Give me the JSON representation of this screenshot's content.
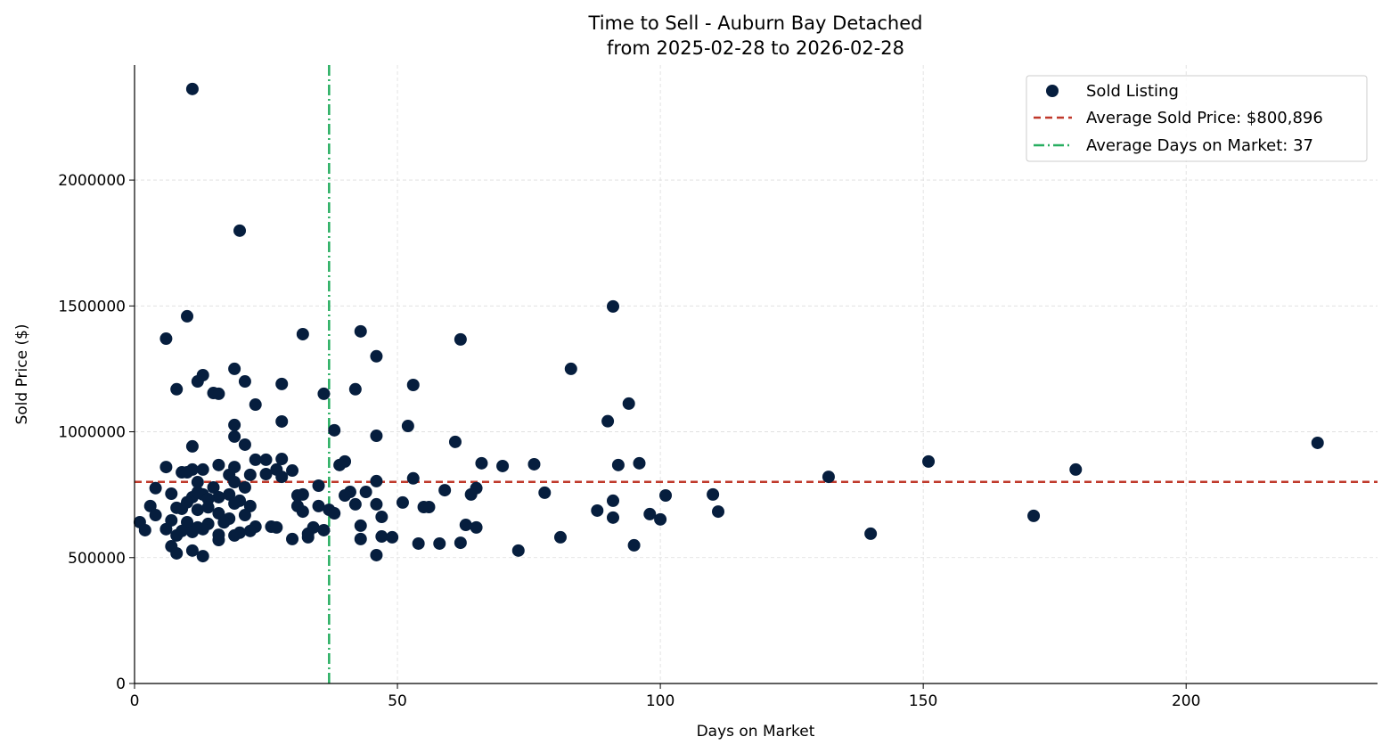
{
  "chart_data": {
    "type": "scatter",
    "title": "Time to Sell - Auburn Bay Detached",
    "subtitle": "from 2025-02-28 to 2026-02-28",
    "xlabel": "Days on Market",
    "ylabel": "Sold Price ($)",
    "xlim": [
      0,
      236.4
    ],
    "ylim": [
      0,
      2457000
    ],
    "xticks": [
      0,
      50,
      100,
      150,
      200
    ],
    "yticks": [
      0,
      500000,
      1000000,
      1500000,
      2000000
    ],
    "grid": true,
    "legend_placement": "top-right",
    "legend": [
      "Sold Listing",
      "Average Sold Price: $800,896",
      "Average Days on Market: 37"
    ],
    "colors": {
      "points": "#061e3e",
      "avg_price": "#c0392b",
      "avg_days": "#27ae60"
    },
    "avg_price": 800896,
    "avg_days": 37,
    "points": [
      [
        11,
        2362000
      ],
      [
        20,
        1799000
      ],
      [
        91,
        1498000
      ],
      [
        10,
        1459000
      ],
      [
        6,
        1370000
      ],
      [
        32,
        1388000
      ],
      [
        43,
        1399000
      ],
      [
        62,
        1367000
      ],
      [
        46,
        1300000
      ],
      [
        83,
        1250000
      ],
      [
        19,
        1250000
      ],
      [
        13,
        1225000
      ],
      [
        12,
        1200000
      ],
      [
        21,
        1200000
      ],
      [
        8,
        1169000
      ],
      [
        28,
        1190000
      ],
      [
        53,
        1186000
      ],
      [
        15,
        1154000
      ],
      [
        16,
        1151000
      ],
      [
        36,
        1151000
      ],
      [
        42,
        1169000
      ],
      [
        23,
        1108000
      ],
      [
        94,
        1112000
      ],
      [
        90,
        1042000
      ],
      [
        28,
        1041000
      ],
      [
        19,
        1027000
      ],
      [
        52,
        1023000
      ],
      [
        38,
        1006000
      ],
      [
        19,
        981000
      ],
      [
        46,
        984000
      ],
      [
        225,
        956000
      ],
      [
        61,
        960000
      ],
      [
        11,
        942000
      ],
      [
        21,
        949000
      ],
      [
        151,
        882000
      ],
      [
        28,
        892000
      ],
      [
        23,
        889000
      ],
      [
        25,
        889000
      ],
      [
        40,
        882000
      ],
      [
        39,
        868000
      ],
      [
        66,
        875000
      ],
      [
        70,
        864000
      ],
      [
        76,
        871000
      ],
      [
        92,
        868000
      ],
      [
        96,
        875000
      ],
      [
        16,
        868000
      ],
      [
        6,
        860000
      ],
      [
        179,
        850000
      ],
      [
        19,
        860000
      ],
      [
        27,
        850000
      ],
      [
        30,
        846000
      ],
      [
        13,
        850000
      ],
      [
        11,
        850000
      ],
      [
        9,
        839000
      ],
      [
        10,
        839000
      ],
      [
        18,
        829000
      ],
      [
        22,
        829000
      ],
      [
        25,
        832000
      ],
      [
        28,
        821000
      ],
      [
        132,
        821000
      ],
      [
        53,
        815000
      ],
      [
        46,
        804000
      ],
      [
        12,
        800000
      ],
      [
        19,
        800000
      ],
      [
        35,
        786000
      ],
      [
        4,
        776000
      ],
      [
        15,
        779000
      ],
      [
        21,
        779000
      ],
      [
        65,
        776000
      ],
      [
        59,
        768000
      ],
      [
        41,
        761000
      ],
      [
        44,
        761000
      ],
      [
        78,
        758000
      ],
      [
        7,
        754000
      ],
      [
        13,
        751000
      ],
      [
        18,
        751000
      ],
      [
        32,
        751000
      ],
      [
        64,
        751000
      ],
      [
        101,
        747000
      ],
      [
        110,
        751000
      ],
      [
        31,
        747000
      ],
      [
        40,
        747000
      ],
      [
        16,
        740000
      ],
      [
        11,
        740000
      ],
      [
        14,
        733000
      ],
      [
        20,
        726000
      ],
      [
        91,
        726000
      ],
      [
        51,
        719000
      ],
      [
        42,
        712000
      ],
      [
        19,
        715000
      ],
      [
        22,
        705000
      ],
      [
        3,
        705000
      ],
      [
        31,
        705000
      ],
      [
        35,
        705000
      ],
      [
        8,
        698000
      ],
      [
        46,
        712000
      ],
      [
        55,
        701000
      ],
      [
        56,
        701000
      ],
      [
        9,
        694000
      ],
      [
        12,
        690000
      ],
      [
        37,
        690000
      ],
      [
        32,
        683000
      ],
      [
        38,
        676000
      ],
      [
        111,
        683000
      ],
      [
        88,
        687000
      ],
      [
        16,
        676000
      ],
      [
        21,
        669000
      ],
      [
        4,
        669000
      ],
      [
        98,
        673000
      ],
      [
        47,
        662000
      ],
      [
        171,
        666000
      ],
      [
        91,
        659000
      ],
      [
        100,
        652000
      ],
      [
        18,
        655000
      ],
      [
        7,
        648000
      ],
      [
        1,
        641000
      ],
      [
        10,
        641000
      ],
      [
        14,
        634000
      ],
      [
        63,
        630000
      ],
      [
        43,
        627000
      ],
      [
        26,
        623000
      ],
      [
        27,
        620000
      ],
      [
        23,
        623000
      ],
      [
        34,
        620000
      ],
      [
        65,
        620000
      ],
      [
        6,
        613000
      ],
      [
        2,
        609000
      ],
      [
        13,
        613000
      ],
      [
        9,
        606000
      ],
      [
        22,
        606000
      ],
      [
        36,
        609000
      ],
      [
        11,
        602000
      ],
      [
        20,
        599000
      ],
      [
        140,
        595000
      ],
      [
        33,
        595000
      ],
      [
        8,
        588000
      ],
      [
        16,
        591000
      ],
      [
        19,
        588000
      ],
      [
        47,
        584000
      ],
      [
        49,
        581000
      ],
      [
        81,
        581000
      ],
      [
        33,
        581000
      ],
      [
        30,
        574000
      ],
      [
        43,
        574000
      ],
      [
        16,
        570000
      ],
      [
        62,
        559000
      ],
      [
        58,
        556000
      ],
      [
        54,
        556000
      ],
      [
        95,
        549000
      ],
      [
        7,
        545000
      ],
      [
        11,
        528000
      ],
      [
        73,
        528000
      ],
      [
        8,
        517000
      ],
      [
        46,
        510000
      ],
      [
        13,
        506000
      ],
      [
        12,
        620000
      ],
      [
        14,
        700000
      ],
      [
        10,
        720000
      ],
      [
        17,
        640000
      ],
      [
        12,
        760000
      ]
    ]
  }
}
